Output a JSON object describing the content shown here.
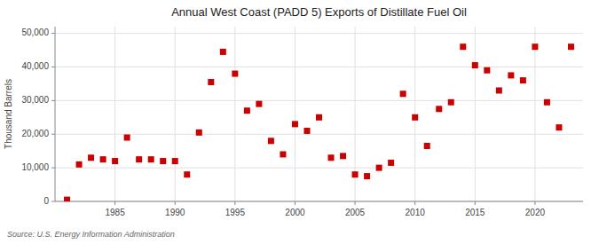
{
  "chart_data": {
    "type": "scatter",
    "title": "Annual West Coast (PADD 5) Exports of Distillate Fuel Oil",
    "ylabel": "Thousand Barrels",
    "annotations": [
      "Source: U.S. Energy Information Administration"
    ],
    "color": "#cc0000",
    "marker": "square",
    "grid": true,
    "xlim": [
      1980,
      2024
    ],
    "xticks": [
      1985,
      1990,
      1995,
      2000,
      2005,
      2010,
      2015,
      2020
    ],
    "ylim": [
      0,
      52000
    ],
    "yticks": [
      0,
      {
        "value": 10000,
        "label": "10,000"
      },
      {
        "value": 20000,
        "label": "20,000"
      },
      {
        "value": 30000,
        "label": "30,000"
      },
      {
        "value": 40000,
        "label": "40,000"
      },
      {
        "value": 50000,
        "label": "50,000"
      }
    ],
    "x": [
      1981,
      1982,
      1983,
      1984,
      1985,
      1986,
      1987,
      1988,
      1989,
      1990,
      1991,
      1992,
      1993,
      1994,
      1995,
      1996,
      1997,
      1998,
      1999,
      2000,
      2001,
      2002,
      2003,
      2004,
      2005,
      2006,
      2007,
      2008,
      2009,
      2010,
      2011,
      2012,
      2013,
      2014,
      2015,
      2016,
      2017,
      2018,
      2019,
      2020,
      2021,
      2022,
      2023
    ],
    "values": [
      500,
      11000,
      13000,
      12500,
      12000,
      19000,
      12500,
      12500,
      12000,
      12000,
      8000,
      20500,
      35500,
      44500,
      38000,
      27000,
      29000,
      18000,
      14000,
      23000,
      21000,
      25000,
      13000,
      13500,
      8000,
      7500,
      10000,
      11500,
      32000,
      25000,
      16500,
      27500,
      29500,
      46000,
      40500,
      39000,
      33000,
      37500,
      36000,
      46000,
      29500,
      22000,
      46000
    ]
  }
}
